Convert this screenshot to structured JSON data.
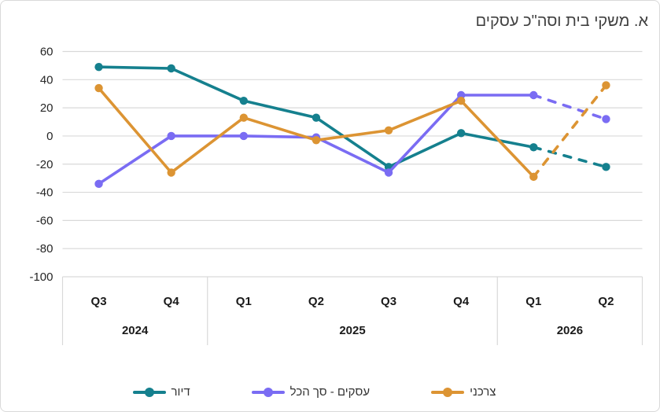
{
  "title": "א. משקי בית וסה\"כ עסקים",
  "colors": {
    "housing": "#15808E",
    "business": "#7A6CF3",
    "consumer": "#DC9433",
    "grid": "#D9D9D9",
    "tick_text": "#262626",
    "title_text": "#404040"
  },
  "chart_data": {
    "type": "line",
    "title": "א. משקי בית וסה\"כ עסקים",
    "x_labels": [
      "Q3",
      "Q4",
      "Q1",
      "Q2",
      "Q3",
      "Q4",
      "Q1",
      "Q2"
    ],
    "year_groups": [
      {
        "label": "2024",
        "span": 2
      },
      {
        "label": "2025",
        "span": 4
      },
      {
        "label": "2026",
        "span": 2
      }
    ],
    "ylim": [
      -100,
      60
    ],
    "yticks": [
      60,
      40,
      20,
      0,
      -20,
      -40,
      -60,
      -80,
      -100
    ],
    "grid": true,
    "legend_position": "bottom",
    "forecast_from_index": 6,
    "forecast_style": "dashed",
    "series": [
      {
        "name": "דיור",
        "color_key": "housing",
        "values": [
          49,
          48,
          25,
          13,
          -22,
          2,
          -8,
          -22
        ]
      },
      {
        "name": "עסקים - סך הכל",
        "color_key": "business",
        "values": [
          -34,
          0,
          0,
          -1,
          -26,
          29,
          29,
          12
        ]
      },
      {
        "name": "צרכני",
        "color_key": "consumer",
        "values": [
          34,
          -26,
          13,
          -3,
          4,
          25,
          -29,
          36
        ]
      }
    ]
  }
}
